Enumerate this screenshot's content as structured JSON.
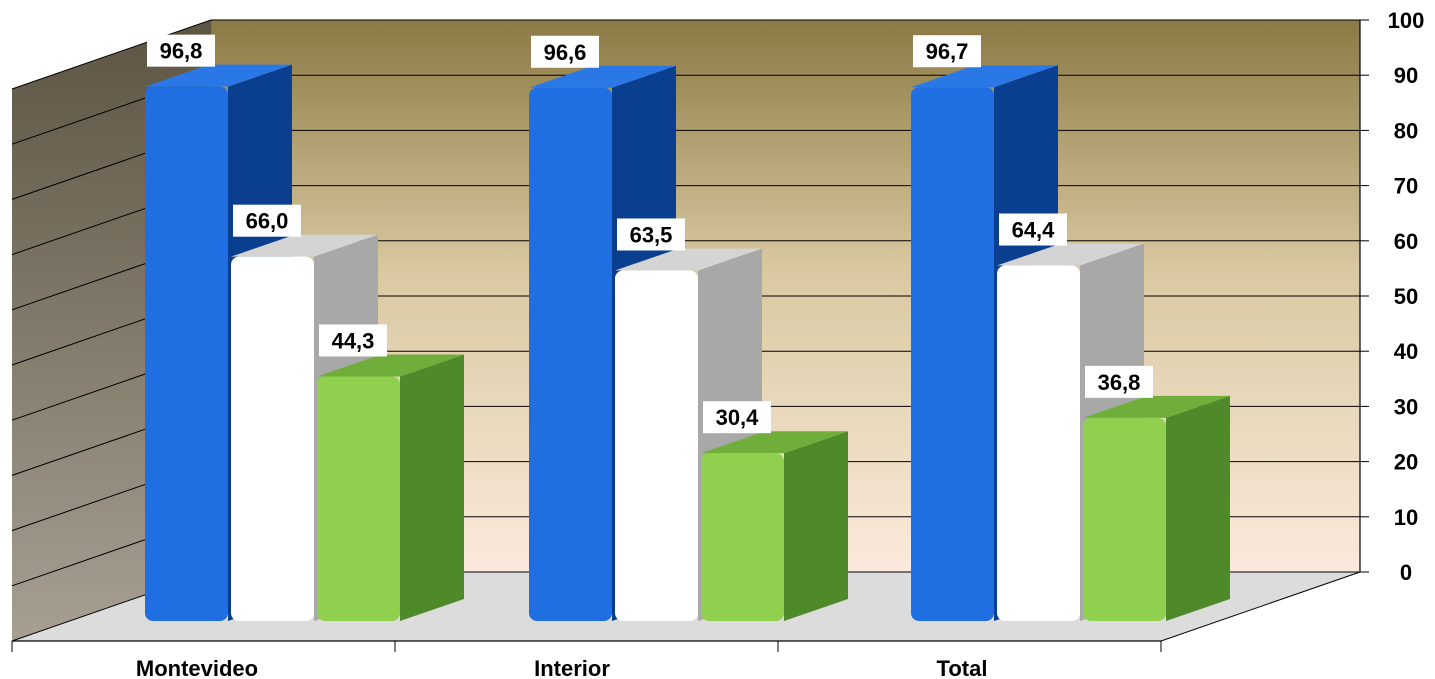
{
  "chart_data": {
    "type": "bar",
    "title": "",
    "xlabel": "",
    "ylabel": "",
    "categories": [
      "Montevideo",
      "Interior",
      "Total"
    ],
    "series": [
      {
        "values": [
          96.8,
          96.6,
          96.7
        ],
        "labels": [
          "96,8",
          "96,6",
          "96,7"
        ],
        "color_front": "#1f6fe3",
        "color_side": "#0a3f8f",
        "color_top": "#2a78e6"
      },
      {
        "values": [
          66.0,
          63.5,
          64.4
        ],
        "labels": [
          "66,0",
          "63,5",
          "64,4"
        ],
        "color_front": "#ffffff",
        "color_side": "#a8a8a8",
        "color_top": "#d4d4d4"
      },
      {
        "values": [
          44.3,
          30.4,
          36.8
        ],
        "labels": [
          "44,3",
          "30,4",
          "36,8"
        ],
        "color_front": "#8fd14f",
        "color_side": "#4e8a2a",
        "color_top": "#6fae3a"
      }
    ],
    "ylim": [
      0,
      100
    ],
    "yticks": [
      "0",
      "10",
      "20",
      "30",
      "40",
      "50",
      "60",
      "70",
      "80",
      "90",
      "100"
    ],
    "grid": true,
    "legend": "none",
    "colors": {
      "back_wall_top": "#8b7a45",
      "back_wall_bottom": "#fbeadc",
      "left_wall": "#8a7f6e",
      "floor": "#dcdcdc",
      "grid_line": "#000000"
    }
  }
}
